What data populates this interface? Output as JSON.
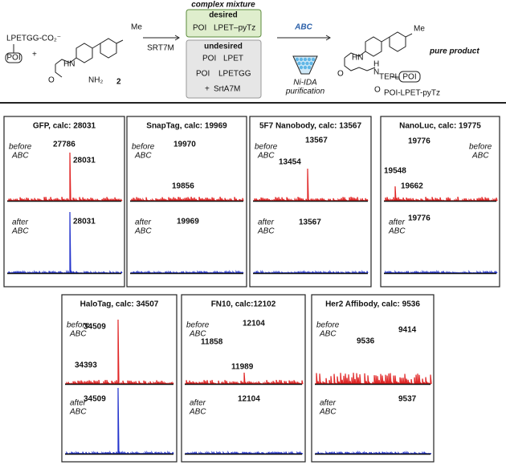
{
  "scheme": {
    "reactant": "LPETGG-CO₂⁻",
    "reactant_tag": "POI",
    "plus": "+",
    "methyl": "Me",
    "amine": "NH₂",
    "hn": "HN",
    "oxygen": "O",
    "compound": "2",
    "enzyme": "SRT7M",
    "mixture_title": "complex mixture",
    "desired": "desired",
    "desired_tag": "POI",
    "desired_product": "LPET–pyTz",
    "undesired": "undesired",
    "undesired_items": [
      {
        "tag": "POI",
        "text": "LPET"
      },
      {
        "tag": "POI",
        "text": "LPETGG"
      }
    ],
    "undesired_plus": "+",
    "undesired_enzyme": "SrtA7M",
    "method": "ABC",
    "purification": [
      "Ni-IDA",
      "purification"
    ],
    "product_me": "Me",
    "product_hn": "HN",
    "product_o1": "O",
    "product_o2": "O",
    "product_n": "N",
    "product_h": "H",
    "product_seq": "TEPL",
    "product_tag": "POI",
    "product_name": "POI-LPET-pyTz",
    "pure": "pure product"
  },
  "labels": {
    "before": [
      "before",
      "ABC"
    ],
    "after": [
      "after",
      "ABC"
    ]
  },
  "panels": [
    {
      "title": "GFP, calc: 28031",
      "before_peaks": [
        "27786",
        "28031"
      ],
      "after_peak": "28031"
    },
    {
      "title": "SnapTag, calc: 19969",
      "before_peaks": [
        "19970",
        "19856"
      ],
      "after_peak": "19969"
    },
    {
      "title": "5F7 Nanobody, calc: 13567",
      "before_peaks": [
        "13567",
        "13454"
      ],
      "after_peak": "13567"
    },
    {
      "title": "NanoLuc, calc: 19775",
      "before_peaks": [
        "19776",
        "19548",
        "19662"
      ],
      "after_peak": "19776"
    },
    {
      "title": "HaloTag, calc: 34507",
      "before_peaks": [
        "34509",
        "34393"
      ],
      "after_peak": "34509"
    },
    {
      "title": "FN10, calc:12102",
      "before_peaks": [
        "12104",
        "11858",
        "11989"
      ],
      "after_peak": "12104"
    },
    {
      "title": "Her2 Affibody, calc: 9536",
      "before_peaks": [
        "9414",
        "9536"
      ],
      "after_peak": "9537"
    }
  ]
}
